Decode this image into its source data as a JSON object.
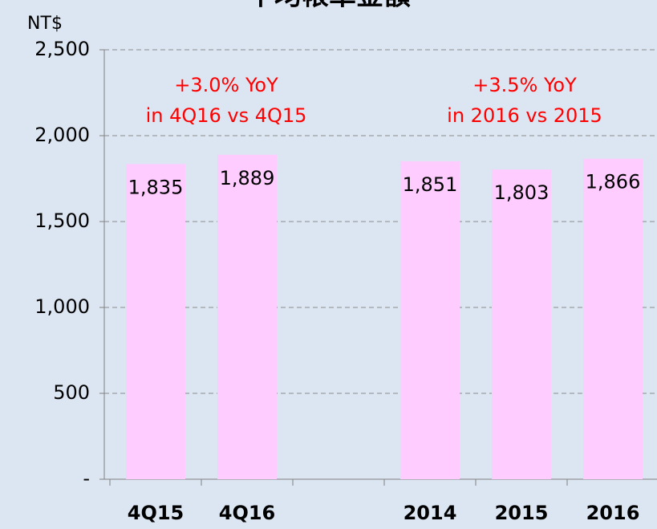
{
  "chart_data": {
    "type": "bar",
    "title": "平均帳單金額",
    "y_label": "NT$",
    "categories": [
      "4Q15",
      "4Q16",
      null,
      "2014",
      "2015",
      "2016"
    ],
    "values": [
      1835,
      1889,
      null,
      1851,
      1803,
      1866
    ],
    "value_labels": [
      "1,835",
      "1,889",
      null,
      "1,851",
      "1,803",
      "1,866"
    ],
    "color": "#ffccff",
    "ylim": [
      0,
      2500
    ],
    "yticks": [
      {
        "value": 0,
        "label": "-"
      },
      500,
      {
        "value": 1000,
        "label": "1,000"
      },
      {
        "value": 1500,
        "label": "1,500"
      },
      {
        "value": 2000,
        "label": "2,000"
      },
      {
        "value": 2500,
        "label": "2,500"
      }
    ],
    "grid": true,
    "annotations": [
      {
        "lines": [
          "+3.0% YoY",
          "in 4Q16 vs 4Q15"
        ],
        "color": "#ff0000"
      },
      {
        "lines": [
          "+3.5% YoY",
          "in 2016 vs 2015"
        ],
        "color": "#ff0000"
      }
    ]
  }
}
